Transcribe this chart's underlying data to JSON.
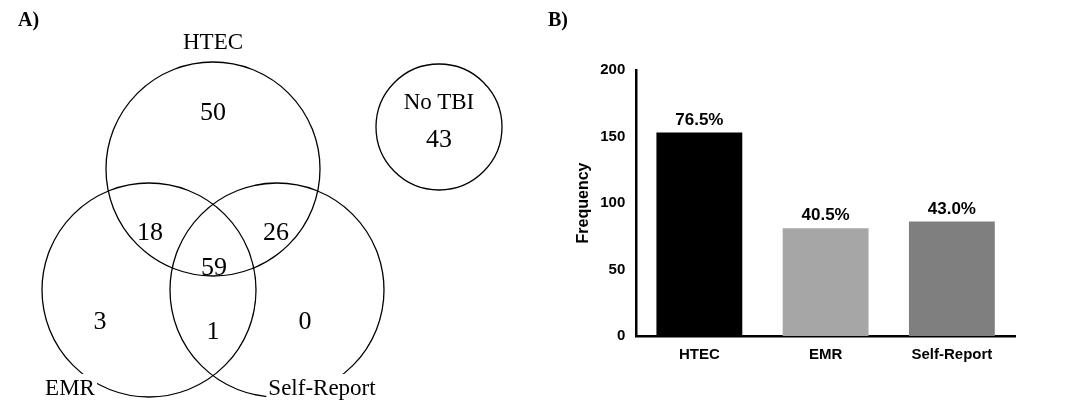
{
  "chart_data": [
    {
      "type": "other",
      "title": "A)",
      "annotations": [
        "HTEC",
        "EMR",
        "Self-Report",
        "No TBI",
        "50",
        "18",
        "26",
        "59",
        "3",
        "1",
        "0",
        "43"
      ]
    },
    {
      "type": "bar",
      "title": "B)",
      "ylabel": "Frequency",
      "categories": [
        "HTEC",
        "EMR",
        "Self-Report"
      ],
      "values": [
        153,
        81,
        86
      ],
      "colors": [
        "#000000",
        "#a6a6a6",
        "#7f7f7f"
      ],
      "annotations": [
        {
          "text": "76.5%",
          "x": "HTEC",
          "y": 153
        },
        {
          "text": "40.5%",
          "x": "EMR",
          "y": 81
        },
        {
          "text": "43.0%",
          "x": "Self-Report",
          "y": 86
        }
      ],
      "ylim": [
        0,
        200
      ],
      "yticks": [
        0,
        50,
        100,
        150,
        200
      ],
      "grid": false,
      "legend": false
    }
  ]
}
